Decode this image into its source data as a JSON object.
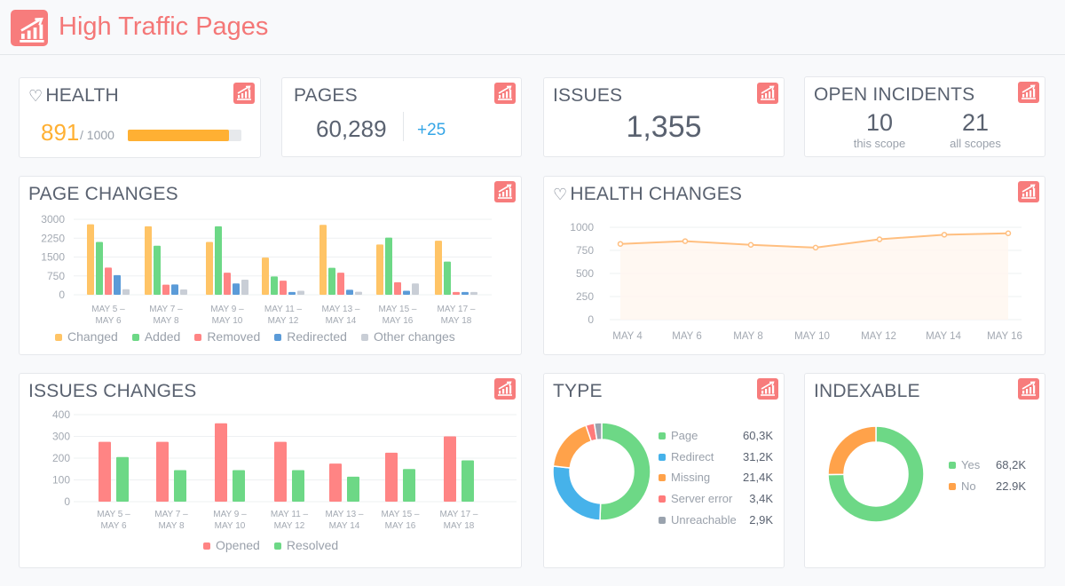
{
  "header": {
    "title": "High Traffic Pages",
    "icon": "trending-chart-icon"
  },
  "colors": {
    "accent": "#f77c7c",
    "changed": "#ffc466",
    "added": "#6dd886",
    "removed": "#ff8484",
    "redirected": "#5b9bd8",
    "other": "#c9ced6",
    "blue": "#46b2ea",
    "orange": "#ffa24a",
    "gray": "#9aa3ae"
  },
  "health": {
    "title": "HEALTH",
    "value": "891",
    "max": "/ 1000",
    "progress": 0.891
  },
  "pages": {
    "title": "PAGES",
    "value": "60,289",
    "delta": "+25"
  },
  "issues": {
    "title": "ISSUES",
    "value": "1,355"
  },
  "incidents": {
    "title": "OPEN INCIDENTS",
    "this_value": "10",
    "this_label": "this scope",
    "all_value": "21",
    "all_label": "all scopes"
  },
  "chart_data": [
    {
      "id": "page_changes",
      "title": "PAGE CHANGES",
      "type": "bar",
      "categories": [
        [
          "MAY 5 –",
          "MAY 6"
        ],
        [
          "MAY 7 –",
          "MAY 8"
        ],
        [
          "MAY 9 –",
          "MAY 10"
        ],
        [
          "MAY 11 –",
          "MAY 12"
        ],
        [
          "MAY 13 –",
          "MAY 14"
        ],
        [
          "MAY 15 –",
          "MAY 16"
        ],
        [
          "MAY 17 –",
          "MAY 18"
        ]
      ],
      "yticks": [
        "0",
        "750",
        "1500",
        "2250",
        "3000"
      ],
      "ylim": [
        0,
        3000
      ],
      "grid": true,
      "legend": "bottom",
      "series": [
        {
          "name": "Changed",
          "color": "#ffc466",
          "values": [
            2800,
            2720,
            2100,
            1480,
            2780,
            2000,
            2150
          ]
        },
        {
          "name": "Added",
          "color": "#6dd886",
          "values": [
            2100,
            1950,
            2720,
            730,
            1070,
            2270,
            1320
          ]
        },
        {
          "name": "Removed",
          "color": "#ff8484",
          "values": [
            1080,
            400,
            880,
            560,
            880,
            500,
            110
          ]
        },
        {
          "name": "Redirected",
          "color": "#5b9bd8",
          "values": [
            780,
            410,
            450,
            110,
            200,
            160,
            110
          ]
        },
        {
          "name": "Other changes",
          "color": "#c9ced6",
          "values": [
            220,
            210,
            600,
            160,
            120,
            450,
            110
          ]
        }
      ]
    },
    {
      "id": "health_changes",
      "title": "HEALTH CHANGES",
      "type": "area",
      "categories": [
        "MAY 4",
        "MAY 6",
        "MAY 8",
        "MAY 10",
        "MAY 12",
        "MAY 14",
        "MAY 16"
      ],
      "yticks": [
        "0",
        "250",
        "500",
        "750",
        "1000"
      ],
      "ylim": [
        0,
        1000
      ],
      "grid": true,
      "series": [
        {
          "color": "#ffbf80",
          "values": [
            820,
            850,
            810,
            780,
            870,
            920,
            935
          ]
        }
      ]
    },
    {
      "id": "issues_changes",
      "title": "ISSUES CHANGES",
      "type": "bar",
      "categories": [
        [
          "MAY 5 –",
          "MAY 6"
        ],
        [
          "MAY 7 –",
          "MAY 8"
        ],
        [
          "MAY 9 –",
          "MAY 10"
        ],
        [
          "MAY 11 –",
          "MAY 12"
        ],
        [
          "MAY 13 –",
          "MAY 14"
        ],
        [
          "MAY 15 –",
          "MAY 16"
        ],
        [
          "MAY 17 –",
          "MAY 18"
        ]
      ],
      "yticks": [
        "0",
        "100",
        "200",
        "300",
        "400"
      ],
      "ylim": [
        0,
        400
      ],
      "grid": true,
      "legend": "bottom",
      "series": [
        {
          "name": "Opened",
          "color": "#ff8484",
          "values": [
            275,
            275,
            360,
            275,
            175,
            225,
            300
          ]
        },
        {
          "name": "Resolved",
          "color": "#6dd886",
          "values": [
            205,
            145,
            145,
            145,
            115,
            150,
            190
          ]
        }
      ]
    },
    {
      "id": "type",
      "title": "TYPE",
      "type": "pie",
      "legend": "right",
      "slices": [
        {
          "label": "Page",
          "display": "60,3K",
          "value": 60.3,
          "color": "#6dd886"
        },
        {
          "label": "Redirect",
          "display": "31,2K",
          "value": 31.2,
          "color": "#46b2ea"
        },
        {
          "label": "Missing",
          "display": "21,4K",
          "value": 21.4,
          "color": "#ffa24a"
        },
        {
          "label": "Server error",
          "display": "3,4K",
          "value": 3.4,
          "color": "#ff7b7b"
        },
        {
          "label": "Unreachable",
          "display": "2,9K",
          "value": 2.9,
          "color": "#9aa3ae"
        }
      ]
    },
    {
      "id": "indexable",
      "title": "INDEXABLE",
      "type": "pie",
      "legend": "right",
      "slices": [
        {
          "label": "Yes",
          "display": "68,2K",
          "value": 68.2,
          "color": "#6dd886"
        },
        {
          "label": "No",
          "display": "22.9K",
          "value": 22.9,
          "color": "#ffa24a"
        }
      ]
    }
  ]
}
